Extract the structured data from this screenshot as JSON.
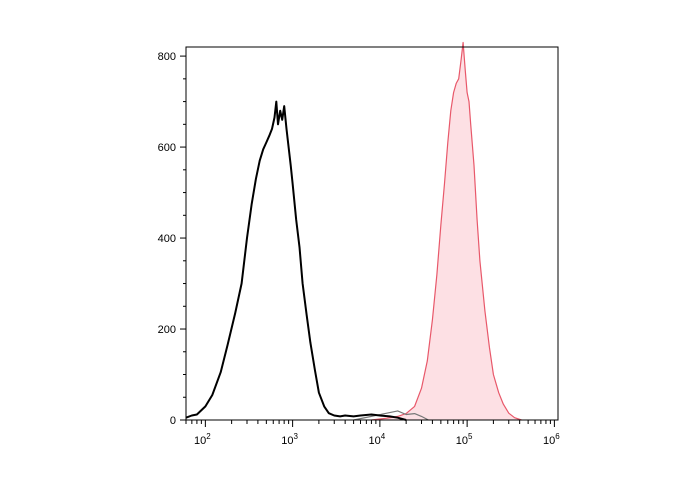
{
  "chart_data": {
    "type": "area",
    "title": "",
    "xlabel": "",
    "ylabel": "",
    "x_scale": "log",
    "xlim": [
      60,
      1100000
    ],
    "ylim": [
      0,
      820
    ],
    "grid": false,
    "x_ticks": [
      {
        "value": 100,
        "base": "10",
        "exp": "2"
      },
      {
        "value": 1000,
        "base": "10",
        "exp": "3"
      },
      {
        "value": 10000,
        "base": "10",
        "exp": "4"
      },
      {
        "value": 100000,
        "base": "10",
        "exp": "5"
      },
      {
        "value": 1000000,
        "base": "10",
        "exp": "6"
      }
    ],
    "y_ticks": [
      {
        "value": 0,
        "label": "0"
      },
      {
        "value": 200,
        "label": "200"
      },
      {
        "value": 400,
        "label": "400"
      },
      {
        "value": 600,
        "label": "600"
      },
      {
        "value": 800,
        "label": "800"
      }
    ],
    "series": [
      {
        "color": "#000000",
        "fill": "none",
        "x": [
          60,
          70,
          80,
          100,
          120,
          150,
          180,
          220,
          260,
          300,
          340,
          380,
          420,
          460,
          500,
          540,
          580,
          620,
          650,
          680,
          720,
          760,
          800,
          850,
          900,
          950,
          1000,
          1100,
          1200,
          1300,
          1450,
          1600,
          1800,
          2000,
          2300,
          2600,
          3000,
          3500,
          4000,
          5000,
          6000,
          8000,
          10000,
          13000,
          16000,
          20000
        ],
        "y": [
          5,
          10,
          12,
          30,
          55,
          105,
          165,
          235,
          300,
          400,
          475,
          530,
          570,
          595,
          610,
          625,
          640,
          665,
          700,
          650,
          680,
          660,
          690,
          640,
          600,
          560,
          520,
          440,
          380,
          300,
          230,
          170,
          110,
          60,
          30,
          15,
          10,
          8,
          10,
          8,
          10,
          12,
          10,
          8,
          5,
          0
        ]
      },
      {
        "color": "#e8586a",
        "fill": "#fde0e4",
        "x": [
          8000,
          12000,
          16000,
          20000,
          25000,
          30000,
          35000,
          40000,
          45000,
          50000,
          55000,
          60000,
          65000,
          70000,
          75000,
          80000,
          85000,
          90000,
          95000,
          100000,
          105000,
          110000,
          120000,
          130000,
          140000,
          160000,
          180000,
          200000,
          230000,
          260000,
          300000,
          350000,
          420000
        ],
        "y": [
          0,
          4,
          8,
          14,
          30,
          70,
          130,
          220,
          320,
          430,
          520,
          610,
          680,
          720,
          740,
          750,
          790,
          830,
          770,
          720,
          700,
          650,
          560,
          440,
          350,
          240,
          160,
          100,
          60,
          35,
          15,
          5,
          0
        ]
      },
      {
        "color": "#777777",
        "fill": "none",
        "x": [
          5000,
          8000,
          12000,
          16000,
          20000,
          25000,
          30000,
          36000
        ],
        "y": [
          0,
          8,
          15,
          20,
          12,
          14,
          8,
          0
        ]
      }
    ]
  }
}
